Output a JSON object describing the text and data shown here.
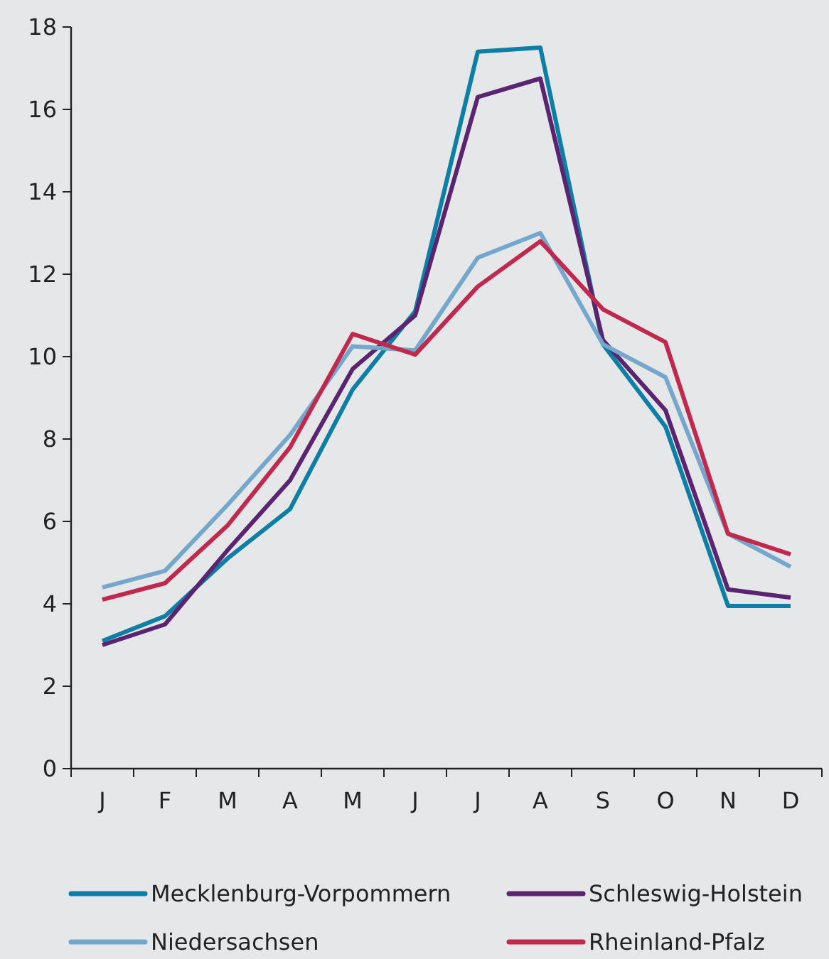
{
  "chart_data": {
    "type": "line",
    "categories": [
      "J",
      "F",
      "M",
      "A",
      "M",
      "J",
      "J",
      "A",
      "S",
      "O",
      "N",
      "D"
    ],
    "series": [
      {
        "name": "Mecklenburg-Vorpommern",
        "color": "#0d7ea5",
        "values": [
          3.1,
          3.7,
          5.1,
          6.3,
          9.2,
          11.1,
          17.4,
          17.5,
          10.3,
          8.3,
          3.95,
          3.95
        ]
      },
      {
        "name": "Schleswig-Holstein",
        "color": "#5a2470",
        "values": [
          3.0,
          3.5,
          5.3,
          7.0,
          9.7,
          11.0,
          16.3,
          16.75,
          10.4,
          8.7,
          4.35,
          4.15
        ]
      },
      {
        "name": "Niedersachsen",
        "color": "#74a7cc",
        "values": [
          4.4,
          4.8,
          6.4,
          8.1,
          10.25,
          10.15,
          12.4,
          13.0,
          10.3,
          9.5,
          5.7,
          4.9
        ]
      },
      {
        "name": "Rheinland-Pfalz",
        "color": "#c0284e",
        "values": [
          4.1,
          4.5,
          5.9,
          7.8,
          10.55,
          10.05,
          11.7,
          12.8,
          11.15,
          10.35,
          5.7,
          5.2
        ]
      }
    ],
    "ylim": [
      0,
      18
    ],
    "yticks": [
      0,
      2,
      4,
      6,
      8,
      10,
      12,
      14,
      16,
      18
    ],
    "grid": false,
    "legend": "bottom",
    "marker": "none",
    "line_style": "solid"
  }
}
